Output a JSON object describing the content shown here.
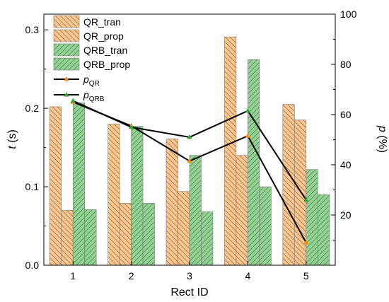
{
  "chart_data": {
    "type": "bar",
    "title": "",
    "xlabel": "Rect ID",
    "ylabel_left_var": "t",
    "ylabel_left_unit": " (s)",
    "ylabel_right_var": "p",
    "ylabel_right_unit": " (%)",
    "categories": [
      "1",
      "2",
      "3",
      "4",
      "5"
    ],
    "ylim_left": [
      0,
      0.32
    ],
    "yticks_left": [
      "0.0",
      "0.1",
      "0.2",
      "0.3"
    ],
    "ylim_right": [
      0,
      100
    ],
    "yticks_right": [
      "20",
      "40",
      "60",
      "80",
      "100"
    ],
    "legend_position": "top-left",
    "series": [
      {
        "name": "QR_tran",
        "values": [
          0.202,
          0.18,
          0.161,
          0.291,
          0.205
        ],
        "color": "#FFC58A",
        "hatch": "back"
      },
      {
        "name": "QR_prop",
        "values": [
          0.07,
          0.079,
          0.094,
          0.14,
          0.185
        ],
        "color": "#FFC58A",
        "hatch": "back"
      },
      {
        "name": "QRB_tran",
        "values": [
          0.207,
          0.177,
          0.14,
          0.262,
          0.122
        ],
        "color": "#8FD48F",
        "hatch": "fwd"
      },
      {
        "name": "QRB_prop",
        "values": [
          0.071,
          0.079,
          0.068,
          0.1,
          0.09
        ],
        "color": "#8FD48F",
        "hatch": "fwd"
      }
    ],
    "line_series": [
      {
        "name_base": "p",
        "name_sub": "QR",
        "values": [
          65.0,
          55.5,
          41.5,
          51.5,
          9.0
        ],
        "marker_color": "#FF8C00"
      },
      {
        "name_base": "p",
        "name_sub": "QRB",
        "values": [
          65.5,
          55.0,
          51.0,
          61.5,
          26.0
        ],
        "marker_color": "#33AA33"
      }
    ]
  }
}
